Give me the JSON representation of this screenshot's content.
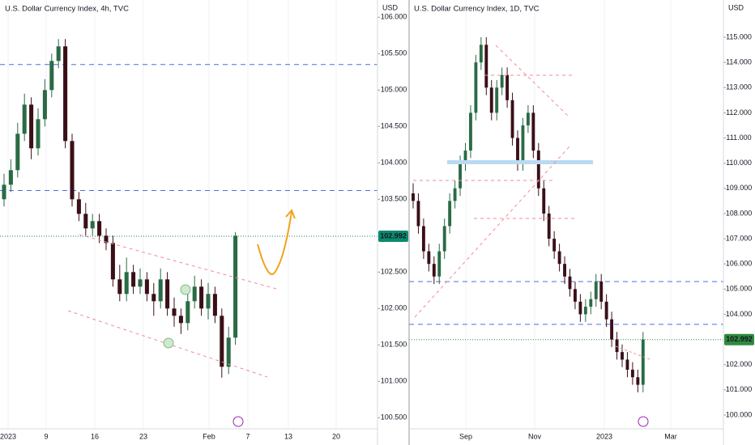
{
  "chart_data": [
    {
      "type": "candlestick",
      "title": "U.S. Dollar Currency Index, 4h, TVC",
      "unit": "USD",
      "up_color": "#2a6b45",
      "down_color": "#3a0f18",
      "ohlc": [
        [
          103.5,
          103.85,
          103.4,
          103.7
        ],
        [
          103.7,
          104.05,
          103.6,
          103.9
        ],
        [
          103.9,
          104.55,
          103.8,
          104.4
        ],
        [
          104.4,
          104.95,
          104.3,
          104.8
        ],
        [
          104.8,
          104.9,
          104.05,
          104.2
        ],
        [
          104.2,
          104.75,
          104.1,
          104.6
        ],
        [
          104.6,
          105.15,
          104.5,
          105.0
        ],
        [
          105.0,
          105.5,
          104.9,
          105.4
        ],
        [
          105.4,
          105.7,
          105.3,
          105.6
        ],
        [
          105.6,
          105.7,
          104.2,
          104.3
        ],
        [
          104.3,
          104.4,
          103.4,
          103.5
        ],
        [
          103.5,
          103.6,
          103.2,
          103.3
        ],
        [
          103.3,
          103.45,
          103.0,
          103.1
        ],
        [
          103.1,
          103.3,
          103.0,
          103.2
        ],
        [
          103.2,
          103.3,
          102.9,
          103.0
        ],
        [
          103.0,
          103.1,
          102.8,
          102.9
        ],
        [
          102.9,
          103.0,
          102.3,
          102.4
        ],
        [
          102.4,
          102.6,
          102.1,
          102.2
        ],
        [
          102.2,
          102.7,
          102.1,
          102.5
        ],
        [
          102.5,
          102.6,
          102.2,
          102.3
        ],
        [
          102.3,
          102.55,
          102.2,
          102.4
        ],
        [
          102.4,
          102.5,
          102.1,
          102.2
        ],
        [
          102.2,
          102.35,
          101.9,
          102.1
        ],
        [
          102.1,
          102.55,
          102.0,
          102.4
        ],
        [
          102.4,
          102.5,
          101.9,
          102.0
        ],
        [
          102.0,
          102.15,
          101.75,
          101.9
        ],
        [
          101.9,
          102.0,
          101.65,
          101.8
        ],
        [
          101.8,
          102.25,
          101.7,
          102.1
        ],
        [
          102.1,
          102.45,
          102.0,
          102.3
        ],
        [
          102.3,
          102.4,
          101.9,
          102.0
        ],
        [
          102.0,
          102.35,
          101.85,
          102.2
        ],
        [
          102.2,
          102.3,
          101.8,
          101.9
        ],
        [
          101.9,
          102.0,
          101.05,
          101.2
        ],
        [
          101.2,
          101.75,
          101.1,
          101.6
        ],
        [
          101.6,
          103.05,
          101.5,
          103.0
        ]
      ],
      "x_labels": [
        "2023",
        "9",
        "16",
        "23",
        "Feb",
        "7",
        "13",
        "20"
      ],
      "ylim": [
        100.3,
        106.1
      ],
      "yticks": [
        {
          "value": 106,
          "label": "106.000"
        },
        {
          "value": 105.5,
          "label": "105.500"
        },
        {
          "value": 105,
          "label": "105.000"
        },
        {
          "value": 104.5,
          "label": "104.500"
        },
        {
          "value": 104,
          "label": "104.000"
        },
        {
          "value": 103.5,
          "label": "103.500"
        },
        {
          "value": 102.5,
          "label": "102.500"
        },
        {
          "value": 102,
          "label": "102.000"
        },
        {
          "value": 101.5,
          "label": "101.500"
        },
        {
          "value": 101,
          "label": "101.000"
        },
        {
          "value": 100.5,
          "label": "100.500"
        }
      ],
      "levels": [
        105.35,
        103.62
      ],
      "level_color": "#4a6fe3",
      "last_price": 102.992,
      "last_price_color": "#0b8a6e"
    },
    {
      "type": "candlestick",
      "title": "U.S. Dollar Currency Index, 1D, TVC",
      "unit": "USD",
      "up_color": "#2a6b45",
      "down_color": "#3a0f18",
      "ohlc": [
        [
          108.8,
          109.2,
          108.2,
          108.5
        ],
        [
          108.5,
          108.8,
          107.2,
          107.5
        ],
        [
          107.5,
          107.8,
          106.2,
          106.5
        ],
        [
          106.5,
          106.8,
          105.7,
          106.0
        ],
        [
          106.0,
          106.3,
          105.2,
          105.5
        ],
        [
          105.5,
          106.8,
          105.2,
          106.5
        ],
        [
          106.5,
          107.8,
          106.2,
          107.5
        ],
        [
          107.5,
          108.8,
          107.2,
          108.5
        ],
        [
          108.5,
          109.3,
          108.2,
          109.0
        ],
        [
          109.0,
          110.3,
          108.7,
          110.0
        ],
        [
          110.0,
          110.8,
          109.7,
          110.5
        ],
        [
          110.5,
          112.3,
          110.2,
          112.0
        ],
        [
          112.0,
          114.3,
          111.7,
          114.0
        ],
        [
          114.0,
          115.0,
          113.7,
          114.7
        ],
        [
          114.7,
          115.0,
          112.7,
          113.0
        ],
        [
          113.0,
          113.3,
          111.7,
          112.0
        ],
        [
          112.0,
          113.3,
          111.7,
          113.0
        ],
        [
          113.0,
          113.8,
          112.7,
          113.5
        ],
        [
          113.5,
          113.8,
          112.2,
          112.5
        ],
        [
          112.5,
          112.8,
          110.7,
          111.0
        ],
        [
          111.0,
          111.3,
          109.7,
          110.0
        ],
        [
          110.0,
          111.8,
          109.7,
          111.5
        ],
        [
          111.5,
          112.3,
          111.2,
          112.0
        ],
        [
          112.0,
          112.3,
          110.2,
          110.5
        ],
        [
          110.5,
          110.8,
          108.7,
          109.0
        ],
        [
          109.0,
          109.3,
          107.7,
          108.0
        ],
        [
          108.0,
          108.3,
          106.7,
          107.0
        ],
        [
          107.0,
          107.3,
          106.2,
          106.5
        ],
        [
          106.5,
          106.8,
          105.7,
          106.0
        ],
        [
          106.0,
          106.3,
          105.2,
          105.5
        ],
        [
          105.5,
          105.8,
          104.7,
          105.0
        ],
        [
          105.0,
          105.3,
          104.2,
          104.5
        ],
        [
          104.5,
          104.8,
          103.7,
          104.0
        ],
        [
          104.0,
          104.6,
          103.7,
          104.3
        ],
        [
          104.3,
          104.9,
          104.0,
          104.6
        ],
        [
          104.6,
          105.6,
          104.3,
          105.3
        ],
        [
          105.3,
          105.6,
          104.2,
          104.5
        ],
        [
          104.5,
          104.8,
          103.5,
          103.8
        ],
        [
          103.8,
          104.1,
          102.7,
          103.0
        ],
        [
          103.0,
          103.3,
          102.2,
          102.5
        ],
        [
          102.5,
          102.8,
          101.9,
          102.2
        ],
        [
          102.2,
          102.5,
          101.5,
          101.8
        ],
        [
          101.8,
          102.1,
          101.2,
          101.5
        ],
        [
          101.5,
          101.8,
          100.9,
          101.2
        ],
        [
          101.2,
          103.3,
          100.9,
          103.0
        ]
      ],
      "x_labels": [
        "Sep",
        "Nov",
        "2023",
        "Mar"
      ],
      "ylim": [
        99.3,
        116.1
      ],
      "yticks": [
        {
          "value": 115,
          "label": "115.000"
        },
        {
          "value": 114,
          "label": "114.000"
        },
        {
          "value": 113,
          "label": "113.000"
        },
        {
          "value": 112,
          "label": "112.000"
        },
        {
          "value": 111,
          "label": "111.000"
        },
        {
          "value": 110,
          "label": "110.000"
        },
        {
          "value": 109,
          "label": "109.000"
        },
        {
          "value": 108,
          "label": "108.000"
        },
        {
          "value": 107,
          "label": "107.000"
        },
        {
          "value": 106,
          "label": "106.000"
        },
        {
          "value": 105,
          "label": "105.000"
        },
        {
          "value": 104,
          "label": "104.000"
        },
        {
          "value": 102,
          "label": "102.000"
        },
        {
          "value": 101,
          "label": "101.000"
        },
        {
          "value": 100,
          "label": "100.000"
        }
      ],
      "levels": [
        105.3,
        103.6
      ],
      "level_color": "#4a6fe3",
      "last_price": 102.992,
      "last_price_color": "#2e8b3e"
    }
  ]
}
